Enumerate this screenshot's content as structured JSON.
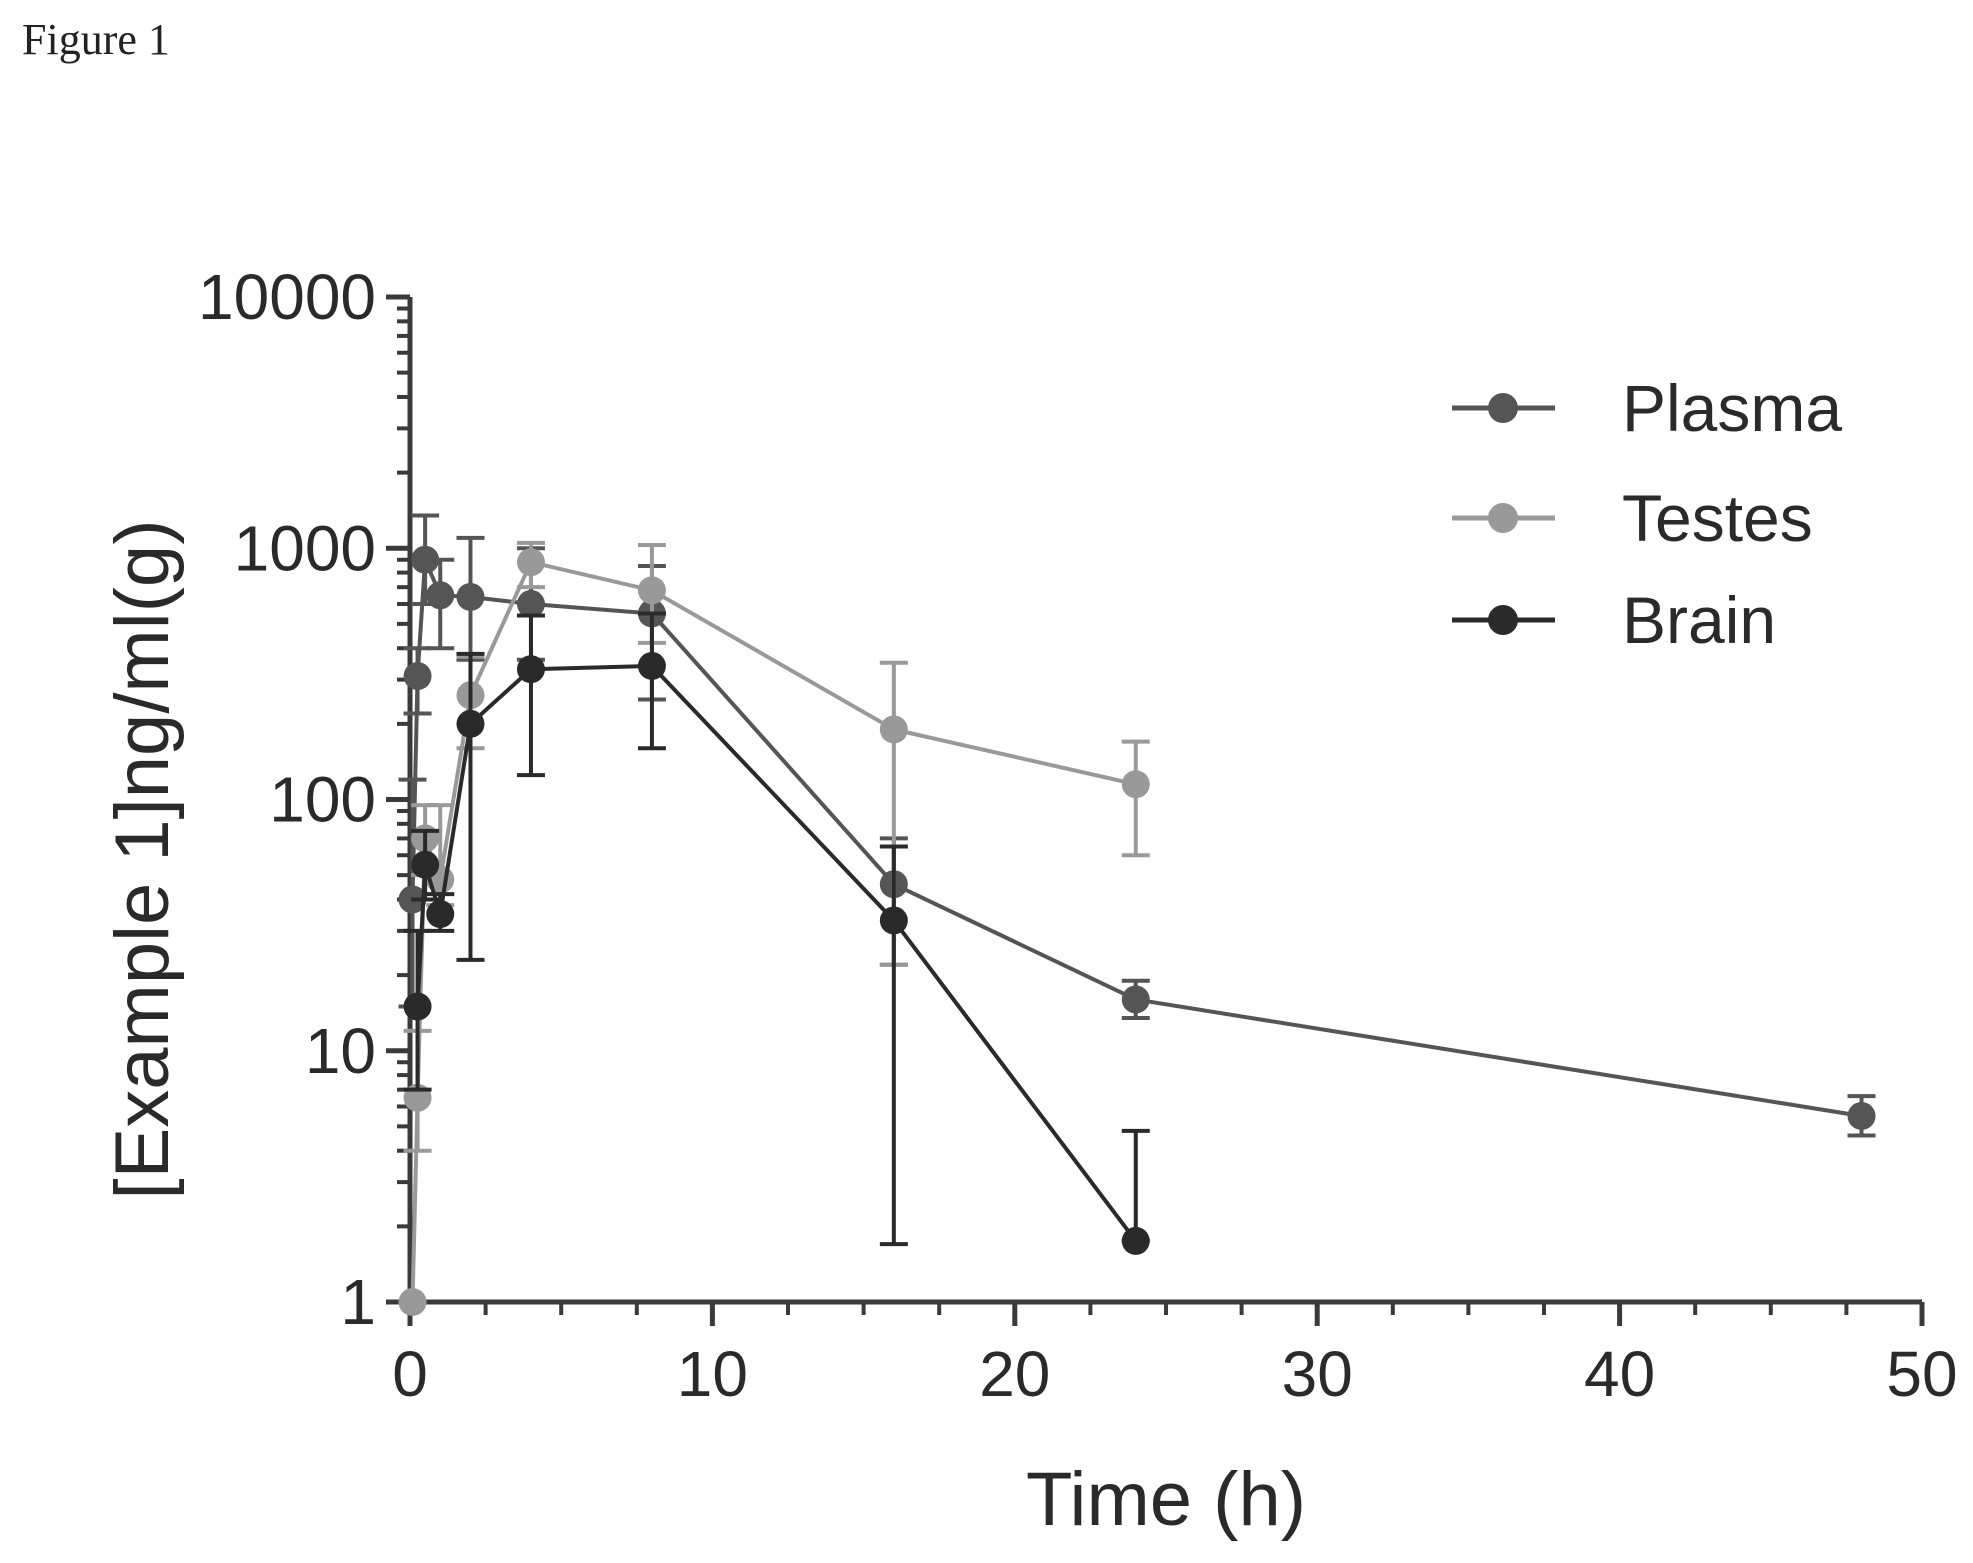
{
  "figure_label": "Figure 1",
  "chart_data": {
    "type": "line",
    "title": "",
    "xlabel": "Time (h)",
    "ylabel": "[Example 1]ng/ml(g)",
    "xlim": [
      0,
      50
    ],
    "ylim": [
      1,
      10000
    ],
    "yscale": "log",
    "x_ticks": [
      0,
      10,
      20,
      30,
      40,
      50
    ],
    "y_ticks": [
      1,
      10,
      100,
      1000,
      10000
    ],
    "x_tick_labels": [
      "0",
      "10",
      "20",
      "30",
      "40",
      "50"
    ],
    "y_tick_labels": [
      "1",
      "10",
      "100",
      "1000",
      "10000"
    ],
    "grid": false,
    "legend_position": "top-right",
    "error_bars": true,
    "series": [
      {
        "name": "Plasma",
        "color": "#555555",
        "points": [
          {
            "x": 0.083,
            "y": 40,
            "err_low": 15,
            "err_high": 120
          },
          {
            "x": 0.25,
            "y": 310,
            "err_low": 220,
            "err_high": 400
          },
          {
            "x": 0.5,
            "y": 900,
            "err_low": 600,
            "err_high": 1350
          },
          {
            "x": 1,
            "y": 650,
            "err_low": 400,
            "err_high": 900
          },
          {
            "x": 2,
            "y": 640,
            "err_low": 360,
            "err_high": 1100
          },
          {
            "x": 4,
            "y": 600,
            "err_low": 360,
            "err_high": 1000
          },
          {
            "x": 8,
            "y": 550,
            "err_low": 250,
            "err_high": 850
          },
          {
            "x": 16,
            "y": 46,
            "err_low": 22,
            "err_high": 70
          },
          {
            "x": 24,
            "y": 16,
            "err_low": 13.5,
            "err_high": 19
          },
          {
            "x": 48,
            "y": 5.5,
            "err_low": 4.6,
            "err_high": 6.6
          }
        ]
      },
      {
        "name": "Testes",
        "color": "#999999",
        "points": [
          {
            "x": 0.083,
            "y": 1,
            "err_low": 1,
            "err_high": 1
          },
          {
            "x": 0.25,
            "y": 6.5,
            "err_low": 4,
            "err_high": 12
          },
          {
            "x": 0.5,
            "y": 70,
            "err_low": 50,
            "err_high": 95
          },
          {
            "x": 1,
            "y": 48,
            "err_low": 38,
            "err_high": 95
          },
          {
            "x": 2,
            "y": 260,
            "err_low": 160,
            "err_high": 370
          },
          {
            "x": 4,
            "y": 880,
            "err_low": 700,
            "err_high": 1050
          },
          {
            "x": 8,
            "y": 680,
            "err_low": 420,
            "err_high": 1030
          },
          {
            "x": 16,
            "y": 190,
            "err_low": 22,
            "err_high": 350
          },
          {
            "x": 24,
            "y": 115,
            "err_low": 60,
            "err_high": 170
          }
        ]
      },
      {
        "name": "Brain",
        "color": "#2a2a2a",
        "points": [
          {
            "x": 0.25,
            "y": 15,
            "err_low": 7,
            "err_high": 30
          },
          {
            "x": 0.5,
            "y": 55,
            "err_low": 40,
            "err_high": 75
          },
          {
            "x": 1,
            "y": 35,
            "err_low": 30,
            "err_high": 42
          },
          {
            "x": 2,
            "y": 200,
            "err_low": 23,
            "err_high": 380
          },
          {
            "x": 4,
            "y": 330,
            "err_low": 125,
            "err_high": 540
          },
          {
            "x": 8,
            "y": 340,
            "err_low": 160,
            "err_high": 550
          },
          {
            "x": 16,
            "y": 33,
            "err_low": 1.7,
            "err_high": 65
          },
          {
            "x": 24,
            "y": 1.75,
            "err_low": 1.75,
            "err_high": 4.8
          }
        ]
      }
    ]
  }
}
